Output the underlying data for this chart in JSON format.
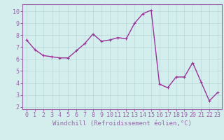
{
  "x": [
    0,
    1,
    2,
    3,
    4,
    5,
    6,
    7,
    8,
    9,
    10,
    11,
    12,
    13,
    14,
    15,
    16,
    17,
    18,
    19,
    20,
    21,
    22,
    23
  ],
  "y": [
    7.6,
    6.8,
    6.3,
    6.2,
    6.1,
    6.1,
    6.7,
    7.3,
    8.1,
    7.5,
    7.6,
    7.8,
    7.7,
    9.0,
    9.8,
    10.1,
    3.9,
    3.6,
    4.5,
    4.5,
    5.7,
    4.1,
    2.5,
    3.2
  ],
  "line_color": "#993399",
  "marker": "+",
  "marker_size": 3,
  "xlabel": "Windchill (Refroidissement éolien,°C)",
  "xlabel_fontsize": 6.5,
  "xlim": [
    -0.5,
    23.5
  ],
  "ylim": [
    1.8,
    10.6
  ],
  "yticks": [
    2,
    3,
    4,
    5,
    6,
    7,
    8,
    9,
    10
  ],
  "xticks": [
    0,
    1,
    2,
    3,
    4,
    5,
    6,
    7,
    8,
    9,
    10,
    11,
    12,
    13,
    14,
    15,
    16,
    17,
    18,
    19,
    20,
    21,
    22,
    23
  ],
  "background_color": "#d4eeed",
  "grid_color": "#b8d8d8",
  "tick_fontsize": 6.0,
  "line_width": 1.0,
  "spine_color": "#9966aa"
}
